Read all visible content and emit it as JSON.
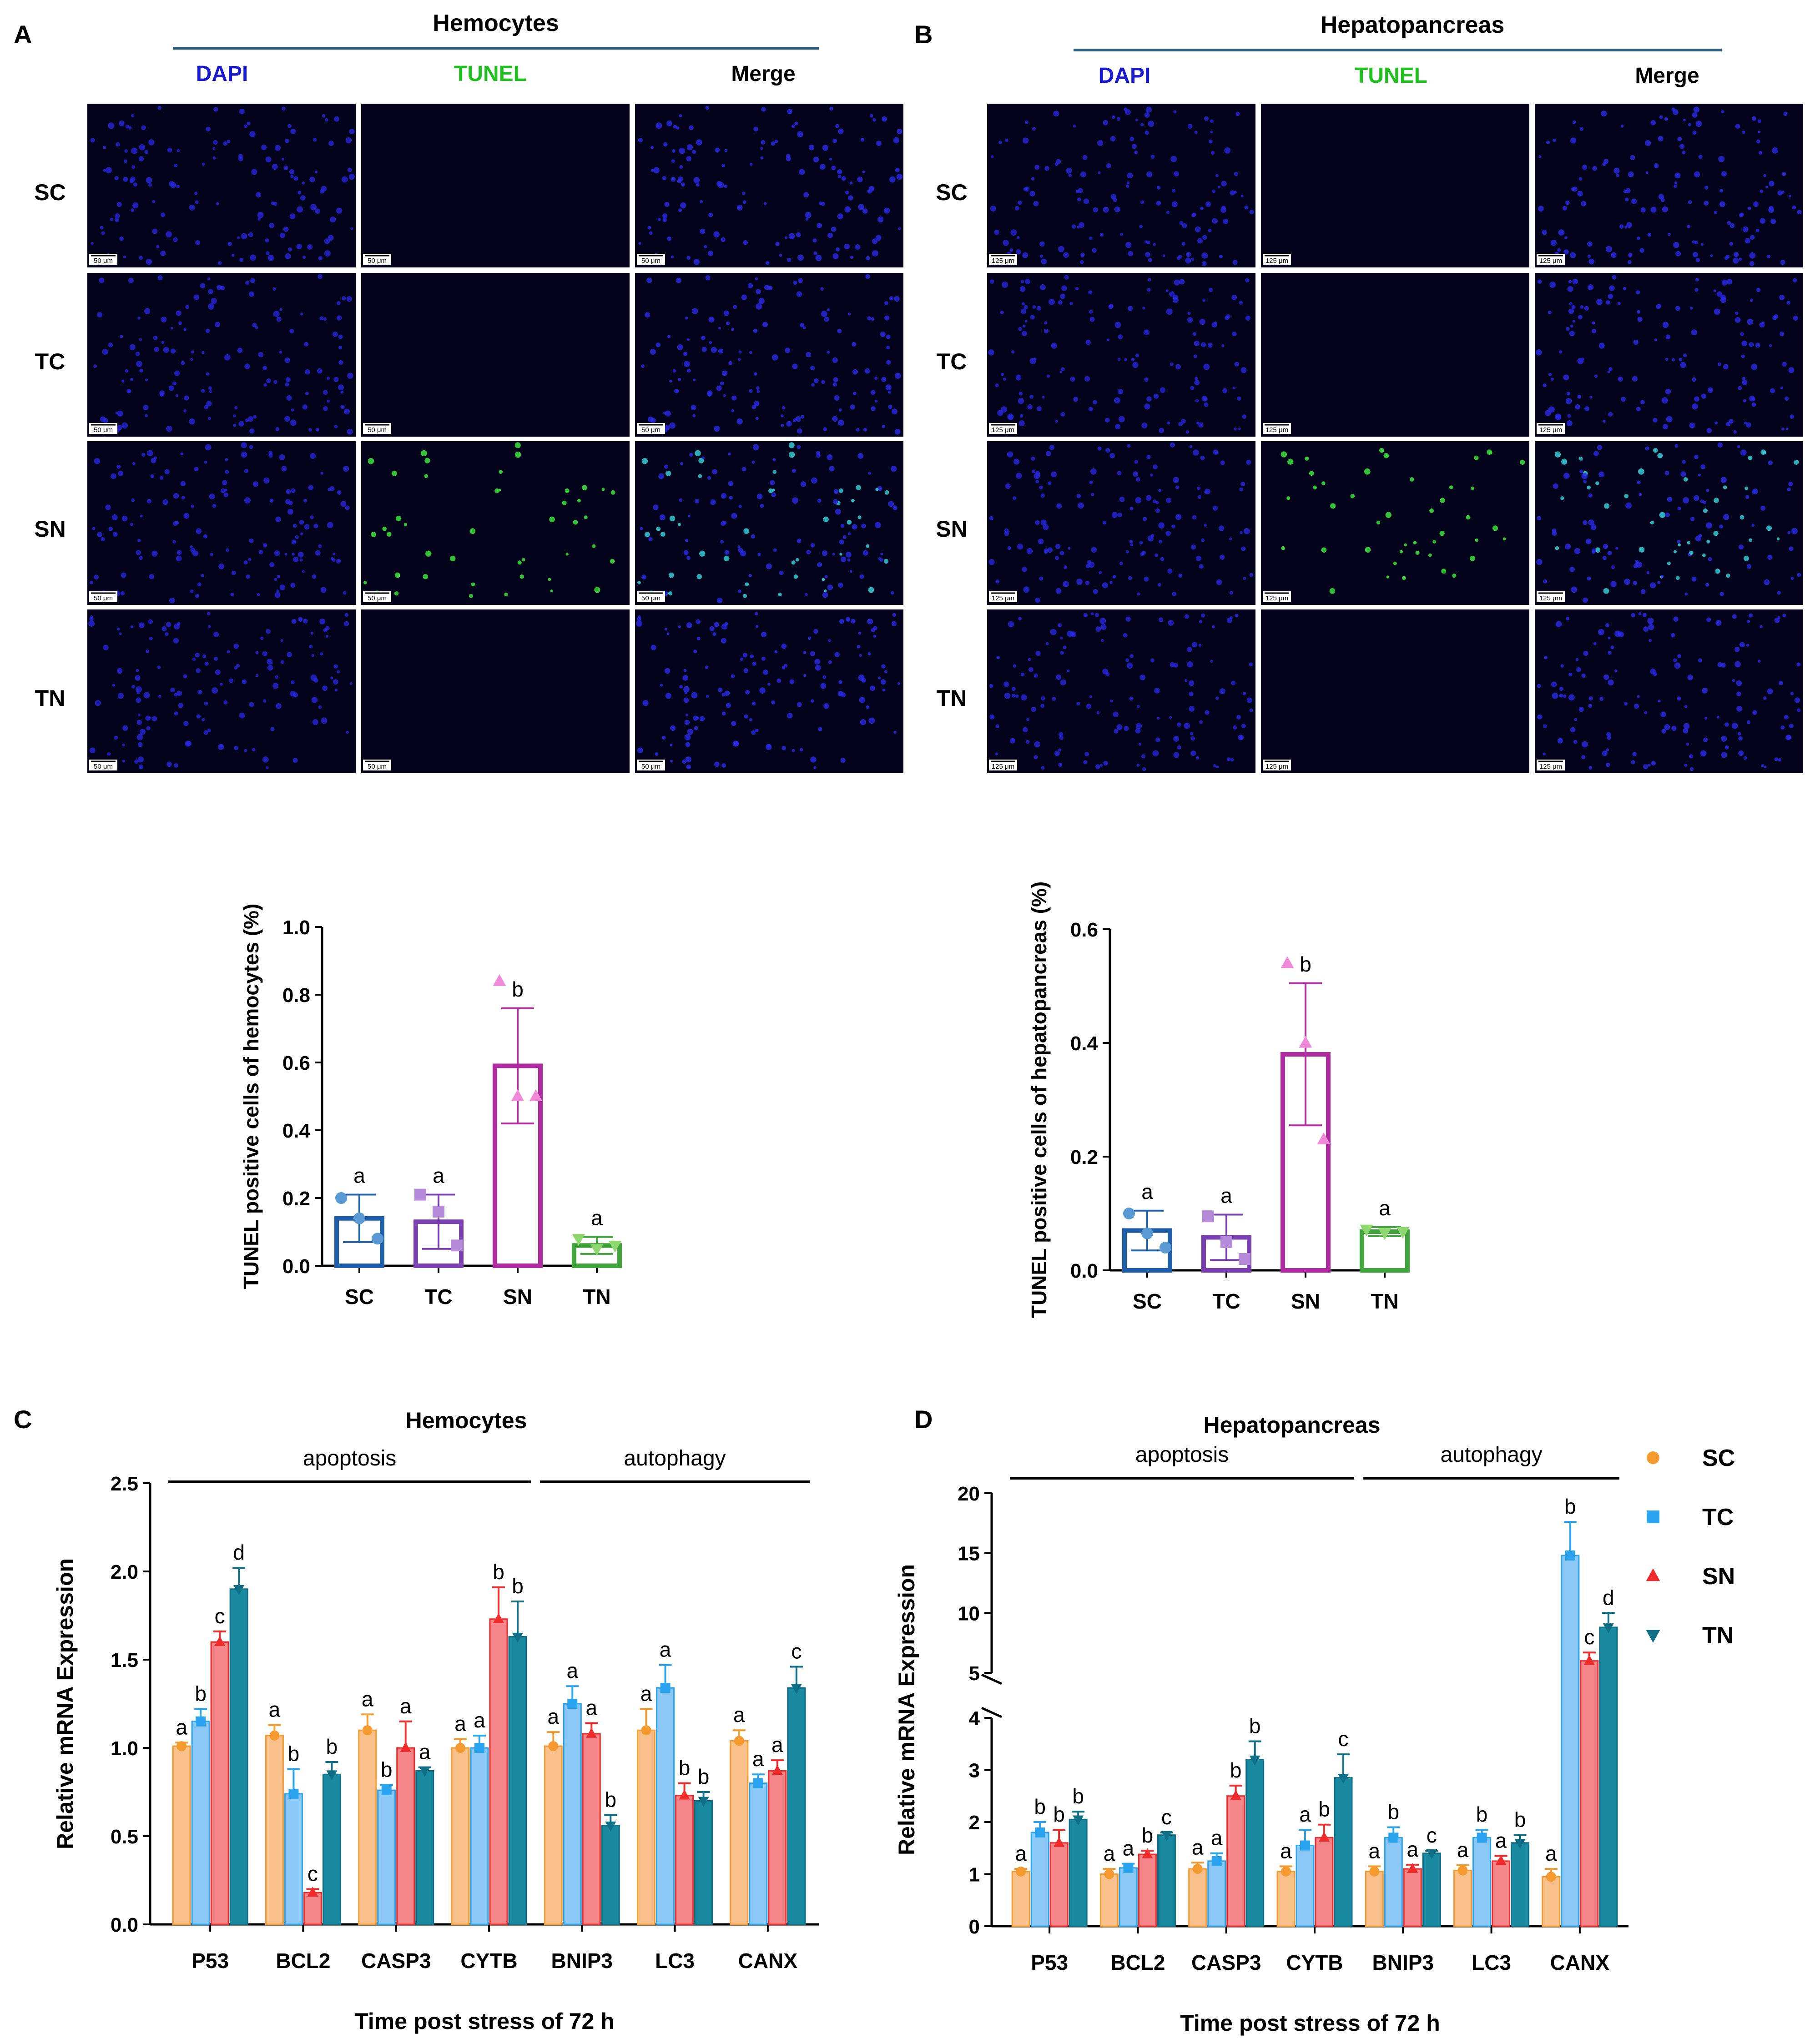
{
  "figure": {
    "panels": {
      "A": {
        "letter": "A",
        "tissue": "Hemocytes",
        "scale_bar": "50 μm"
      },
      "B": {
        "letter": "B",
        "tissue": "Hepatopancreas",
        "scale_bar": "125 μm"
      },
      "C": {
        "letter": "C"
      },
      "D": {
        "letter": "D"
      }
    },
    "stains": [
      "DAPI",
      "TUNEL",
      "Merge"
    ],
    "stain_colors": [
      "#1010e0",
      "#10d010",
      "#000000"
    ],
    "rows": [
      "SC",
      "TC",
      "SN",
      "TN"
    ],
    "micrograph_fluorescence": {
      "A": {
        "SN": "high",
        "others": "none"
      },
      "B": {
        "SN": "high",
        "others": "none"
      }
    }
  },
  "chart_data": [
    {
      "id": "tunel_hemocytes",
      "type": "bar",
      "title": "",
      "xlabel": "",
      "ylabel": "TUNEL positive cells of hemocytes (%)",
      "categories": [
        "SC",
        "TC",
        "SN",
        "TN"
      ],
      "values": [
        0.14,
        0.13,
        0.59,
        0.06
      ],
      "errors": [
        0.07,
        0.08,
        0.17,
        0.025
      ],
      "letters": [
        "a",
        "a",
        "b",
        "a"
      ],
      "colors": [
        "#1f5ea8",
        "#7a3fb0",
        "#b02aa0",
        "#3fa43c"
      ],
      "point_colors": [
        "#5b9bd5",
        "#b48ad8",
        "#f08ad8",
        "#8fd86f"
      ],
      "points": [
        [
          0.2,
          0.14,
          0.08
        ],
        [
          0.21,
          0.16,
          0.06
        ],
        [
          0.84,
          0.5,
          0.5
        ],
        [
          0.08,
          0.05,
          0.06
        ]
      ],
      "yticks": [
        "0.0",
        "0.2",
        "0.4",
        "0.6",
        "0.8",
        "1.0"
      ],
      "ylim": [
        0,
        1.0
      ]
    },
    {
      "id": "tunel_hepatopancreas",
      "type": "bar",
      "title": "",
      "xlabel": "",
      "ylabel": "TUNEL positive cells of hepatopancreas (%)",
      "categories": [
        "SC",
        "TC",
        "SN",
        "TN"
      ],
      "values": [
        0.07,
        0.058,
        0.38,
        0.068
      ],
      "errors": [
        0.035,
        0.04,
        0.125,
        0.008
      ],
      "letters": [
        "a",
        "a",
        "b",
        "a"
      ],
      "colors": [
        "#1f5ea8",
        "#7a3fb0",
        "#b02aa0",
        "#3fa43c"
      ],
      "point_colors": [
        "#5b9bd5",
        "#b48ad8",
        "#f08ad8",
        "#8fd86f"
      ],
      "points": [
        [
          0.1,
          0.065,
          0.04
        ],
        [
          0.095,
          0.05,
          0.02
        ],
        [
          0.54,
          0.4,
          0.23
        ],
        [
          0.072,
          0.066,
          0.068
        ]
      ],
      "yticks": [
        "0.0",
        "0.2",
        "0.4",
        "0.6"
      ],
      "ylim": [
        0,
        0.6
      ]
    },
    {
      "id": "mrna_hemocytes",
      "type": "bar",
      "title": "Hemocytes",
      "xlabel": "Time post  stress of 72 h",
      "ylabel": "Relative mRNA Expression",
      "groups": [
        {
          "label": "apoptosis",
          "from": 0,
          "to": 3
        },
        {
          "label": "autophagy",
          "from": 4,
          "to": 6
        }
      ],
      "categories": [
        "P53",
        "BCL2",
        "CASP3",
        "CYTB",
        "BNIP3",
        "LC3",
        "CANX"
      ],
      "series": [
        {
          "name": "SC",
          "marker": "circle",
          "values": [
            1.01,
            1.07,
            1.1,
            1.0,
            1.01,
            1.1,
            1.04
          ],
          "errors": [
            0.02,
            0.06,
            0.09,
            0.05,
            0.08,
            0.12,
            0.06
          ],
          "letters": [
            "a",
            "a",
            "a",
            "a",
            "a",
            "a",
            "a"
          ]
        },
        {
          "name": "TC",
          "marker": "square",
          "values": [
            1.15,
            0.74,
            0.76,
            1.0,
            1.25,
            1.34,
            0.8
          ],
          "errors": [
            0.07,
            0.14,
            0.03,
            0.07,
            0.1,
            0.13,
            0.05
          ],
          "letters": [
            "b",
            "b",
            "b",
            "a",
            "a",
            "a",
            "a"
          ]
        },
        {
          "name": "SN",
          "marker": "triangle",
          "values": [
            1.6,
            0.18,
            1.0,
            1.73,
            1.08,
            0.73,
            0.87
          ],
          "errors": [
            0.06,
            0.02,
            0.15,
            0.18,
            0.06,
            0.07,
            0.06
          ],
          "letters": [
            "c",
            "c",
            "a",
            "b",
            "a",
            "b",
            "a"
          ]
        },
        {
          "name": "TN",
          "marker": "triangle-down",
          "values": [
            1.9,
            0.85,
            0.87,
            1.63,
            0.56,
            0.7,
            1.34
          ],
          "errors": [
            0.12,
            0.07,
            0.02,
            0.2,
            0.06,
            0.05,
            0.12
          ],
          "letters": [
            "d",
            "b",
            "a",
            "b",
            "b",
            "b",
            "c"
          ]
        }
      ],
      "yticks": [
        "0.0",
        "0.5",
        "1.0",
        "1.5",
        "2.0",
        "2.5"
      ],
      "ylim": [
        0,
        2.5
      ]
    },
    {
      "id": "mrna_hepatopancreas",
      "type": "bar",
      "title": "Hepatopancreas",
      "xlabel": "Time post  stress of 72 h",
      "ylabel": "Relative mRNA Expression",
      "groups": [
        {
          "label": "apoptosis",
          "from": 0,
          "to": 3
        },
        {
          "label": "autophagy",
          "from": 4,
          "to": 6
        }
      ],
      "categories": [
        "P53",
        "BCL2",
        "CASP3",
        "CYTB",
        "BNIP3",
        "LC3",
        "CANX"
      ],
      "series": [
        {
          "name": "SC",
          "marker": "circle",
          "values": [
            1.05,
            1.0,
            1.1,
            1.05,
            1.05,
            1.07,
            0.95
          ],
          "errors": [
            0.05,
            0.1,
            0.12,
            0.1,
            0.1,
            0.1,
            0.15
          ],
          "letters": [
            "a",
            "a",
            "a",
            "a",
            "a",
            "a",
            "a"
          ]
        },
        {
          "name": "TC",
          "marker": "square",
          "values": [
            1.8,
            1.12,
            1.25,
            1.55,
            1.7,
            1.7,
            14.8
          ],
          "errors": [
            0.2,
            0.08,
            0.15,
            0.3,
            0.2,
            0.15,
            2.8
          ],
          "letters": [
            "b",
            "a",
            "a",
            "a",
            "b",
            "b",
            "b"
          ]
        },
        {
          "name": "SN",
          "marker": "triangle",
          "values": [
            1.6,
            1.38,
            2.5,
            1.7,
            1.1,
            1.25,
            6.0
          ],
          "errors": [
            0.25,
            0.07,
            0.2,
            0.25,
            0.08,
            0.1,
            0.7
          ],
          "letters": [
            "b",
            "b",
            "b",
            "b",
            "a",
            "a",
            "c"
          ]
        },
        {
          "name": "TN",
          "marker": "triangle-down",
          "values": [
            2.05,
            1.75,
            3.2,
            2.85,
            1.4,
            1.6,
            8.8
          ],
          "errors": [
            0.15,
            0.05,
            0.35,
            0.45,
            0.05,
            0.15,
            1.2
          ],
          "letters": [
            "b",
            "c",
            "b",
            "c",
            "c",
            "b",
            "d"
          ]
        }
      ],
      "yticks": [
        "0",
        "1",
        "2",
        "3",
        "4",
        "5",
        "10",
        "15",
        "20"
      ],
      "ylim": [
        0,
        20
      ],
      "axis_break": [
        4,
        5
      ]
    }
  ],
  "legend": {
    "items": [
      "SC",
      "TC",
      "SN",
      "TN"
    ],
    "colors": [
      "#f59a2f",
      "#2aa3ef",
      "#ef2b2b",
      "#0e6f86"
    ],
    "fill_colors": [
      "#f8c08a",
      "#8cc8f5",
      "#f5878a",
      "#1a8aa0"
    ]
  }
}
